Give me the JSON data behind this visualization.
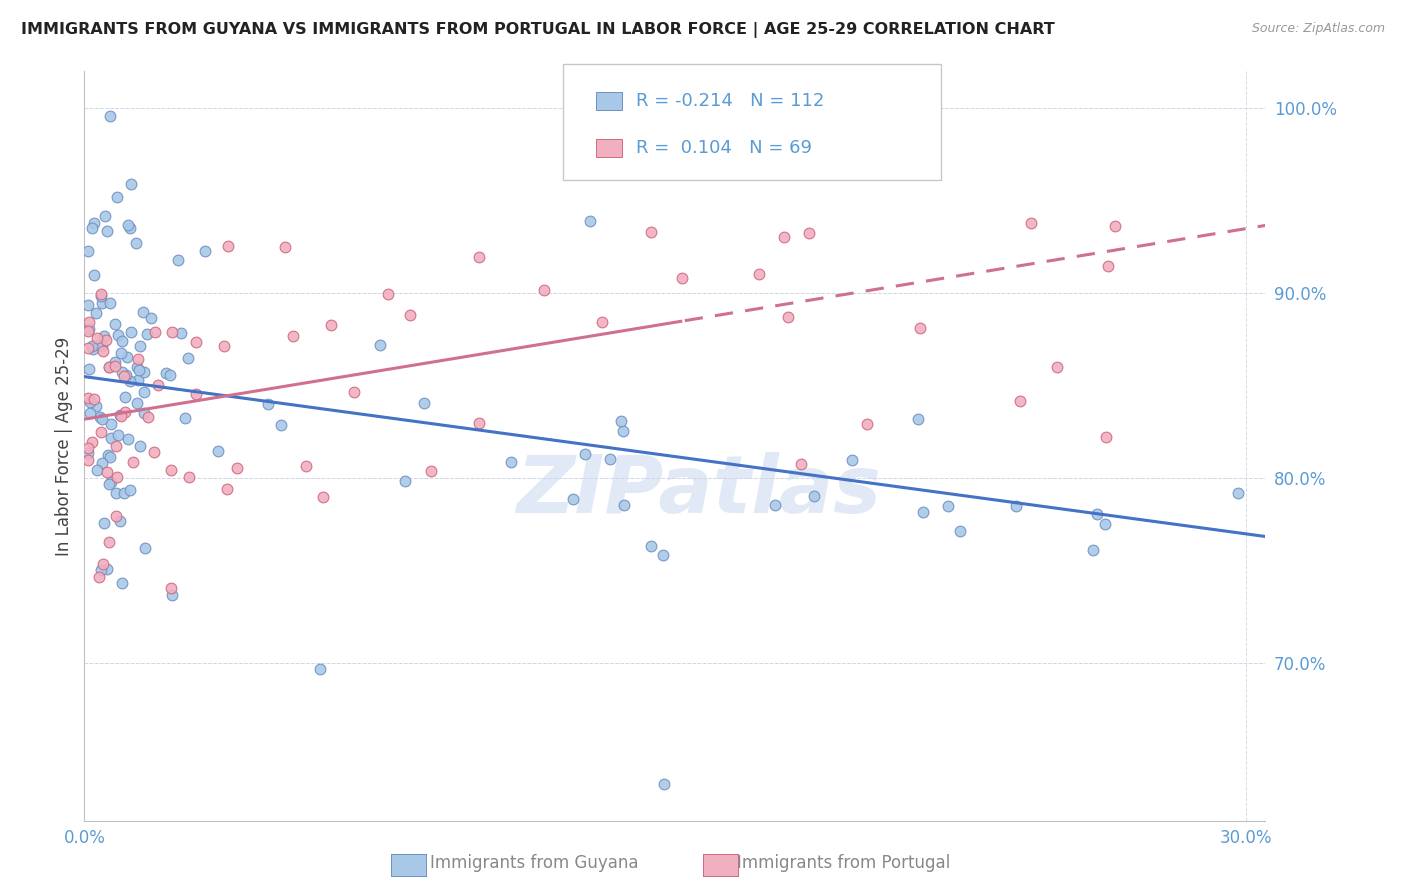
{
  "title": "IMMIGRANTS FROM GUYANA VS IMMIGRANTS FROM PORTUGAL IN LABOR FORCE | AGE 25-29 CORRELATION CHART",
  "source": "Source: ZipAtlas.com",
  "ylabel": "In Labor Force | Age 25-29",
  "x_label_guyana": "Immigrants from Guyana",
  "x_label_portugal": "Immigrants from Portugal",
  "xlim": [
    0.0,
    0.305
  ],
  "ylim": [
    0.615,
    1.02
  ],
  "yticks": [
    0.7,
    0.8,
    0.9,
    1.0
  ],
  "ytick_labels": [
    "70.0%",
    "80.0%",
    "90.0%",
    "100.0%"
  ],
  "xtick_labels_bottom": [
    "0.0%",
    "30.0%"
  ],
  "xticks_bottom": [
    0.0,
    0.3
  ],
  "r_guyana": -0.214,
  "n_guyana": 112,
  "r_portugal": 0.104,
  "n_portugal": 69,
  "color_guyana_fill": "#a8c8e8",
  "color_guyana_edge": "#7090c0",
  "color_portugal_fill": "#f0b0c0",
  "color_portugal_edge": "#d06880",
  "color_trend_guyana": "#4472c4",
  "color_trend_portugal": "#d07090",
  "color_axis_text": "#5b9bd5",
  "color_bottom_text": "#888888",
  "watermark_text": "ZIPatlas",
  "watermark_color": "#c8d8ee",
  "trend_guyana_x0": 0.0,
  "trend_guyana_y0": 0.855,
  "trend_guyana_x1": 0.3,
  "trend_guyana_y1": 0.77,
  "trend_portugal_x0": 0.0,
  "trend_portugal_y0": 0.832,
  "trend_portugal_x1": 0.3,
  "trend_portugal_y1": 0.935,
  "trend_portugal_solid_end": 0.155
}
